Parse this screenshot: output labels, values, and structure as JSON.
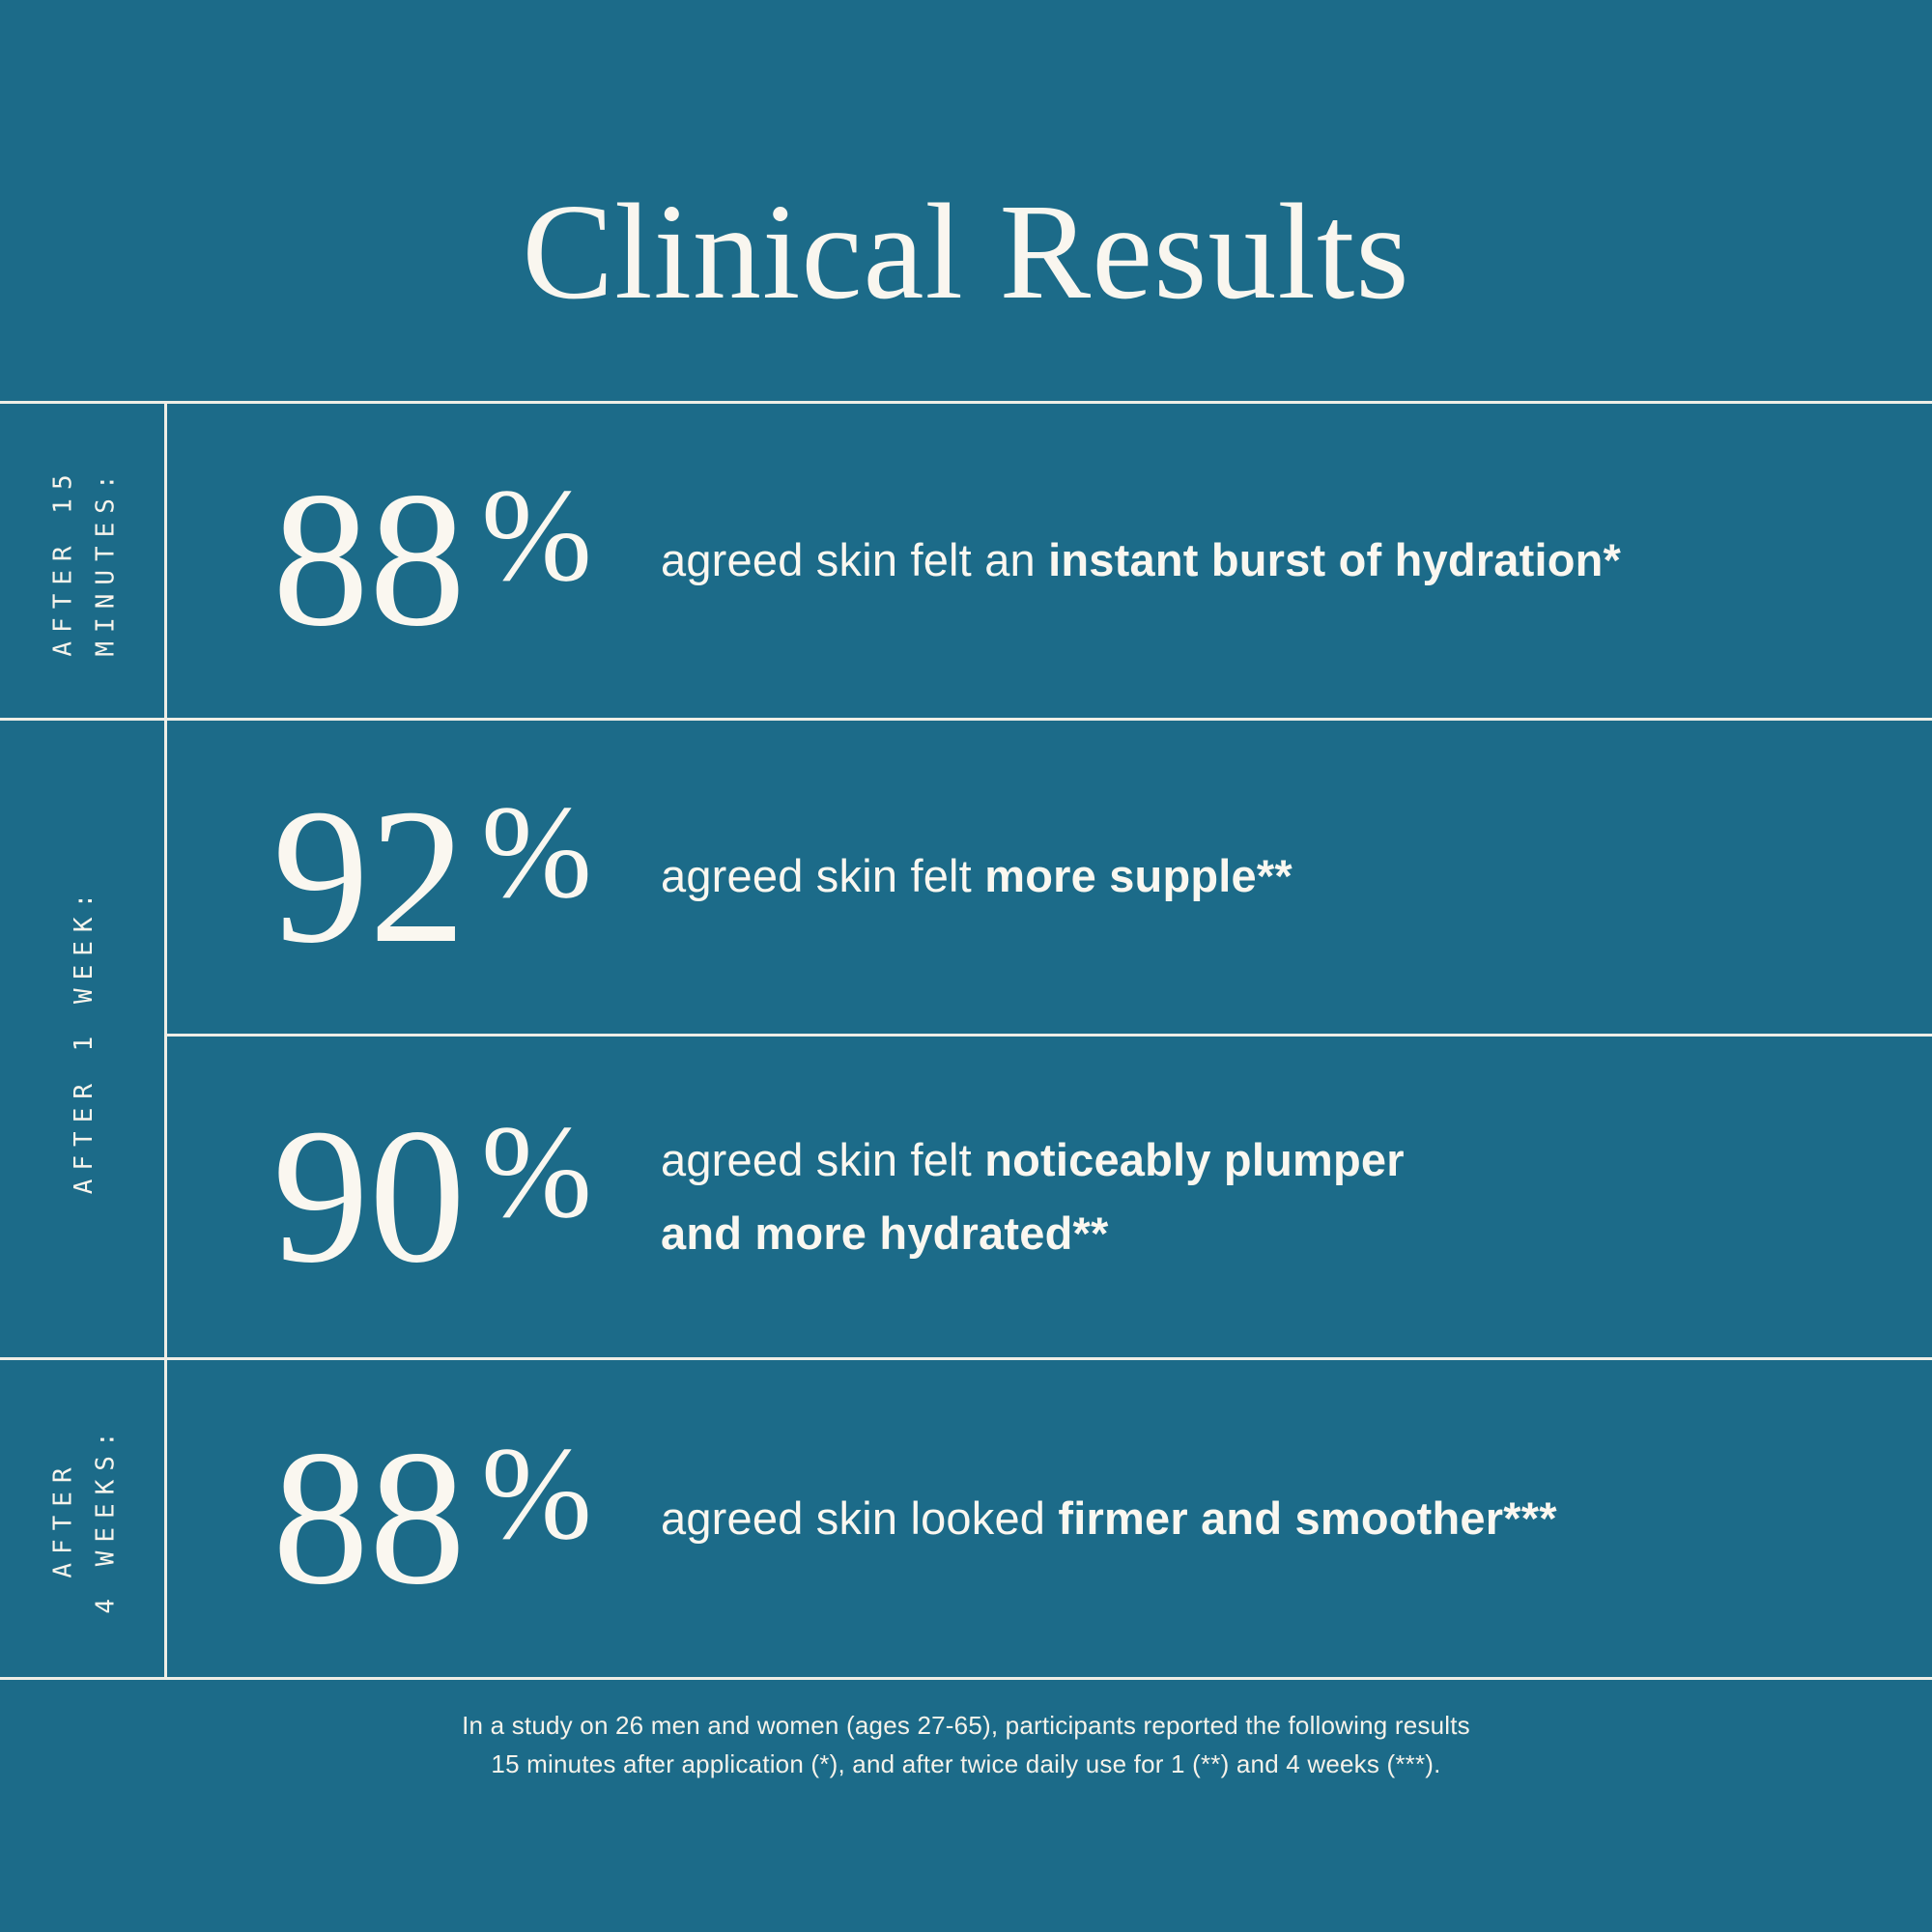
{
  "title": "Clinical Results",
  "colors": {
    "background": "#1c6b89",
    "text": "#faf7f0",
    "line": "#eeeee6"
  },
  "group_labels": [
    {
      "text": "AFTER 15\nMINUTES:"
    },
    {
      "text": "AFTER 1 WEEK:"
    },
    {
      "text": "AFTER\n4 WEEKS:"
    }
  ],
  "rows": [
    {
      "percent_value": "88",
      "percent_sign": "%",
      "text_normal": "agreed skin felt an ",
      "text_bold": "instant burst of hydration*"
    },
    {
      "percent_value": "92",
      "percent_sign": "%",
      "text_normal": "agreed skin felt ",
      "text_bold": "more supple**"
    },
    {
      "percent_value": "90",
      "percent_sign": "%",
      "text_normal": "agreed skin felt ",
      "text_bold": "noticeably plumper",
      "text_bold_line2": "and more hydrated**"
    },
    {
      "percent_value": "88",
      "percent_sign": "%",
      "text_normal": "agreed skin looked ",
      "text_bold": "firmer and smoother***"
    }
  ],
  "footnote": {
    "line1": "In a study on 26 men and women (ages 27-65), participants reported the following results",
    "line2": "15 minutes after application (*), and after twice daily use for 1 (**) and 4 weeks (***)."
  },
  "chart_data": {
    "type": "table",
    "title": "Clinical Results",
    "columns": [
      "timepoint",
      "percent_agreed",
      "claim"
    ],
    "rows": [
      [
        "After 15 minutes",
        88,
        "agreed skin felt an instant burst of hydration*"
      ],
      [
        "After 1 week",
        92,
        "agreed skin felt more supple**"
      ],
      [
        "After 1 week",
        90,
        "agreed skin felt noticeably plumper and more hydrated**"
      ],
      [
        "After 4 weeks",
        88,
        "agreed skin looked firmer and smoother***"
      ]
    ],
    "footnote": "In a study on 26 men and women (ages 27-65), participants reported the following results 15 minutes after application (*), and after twice daily use for 1 (**) and 4 weeks (***)."
  }
}
